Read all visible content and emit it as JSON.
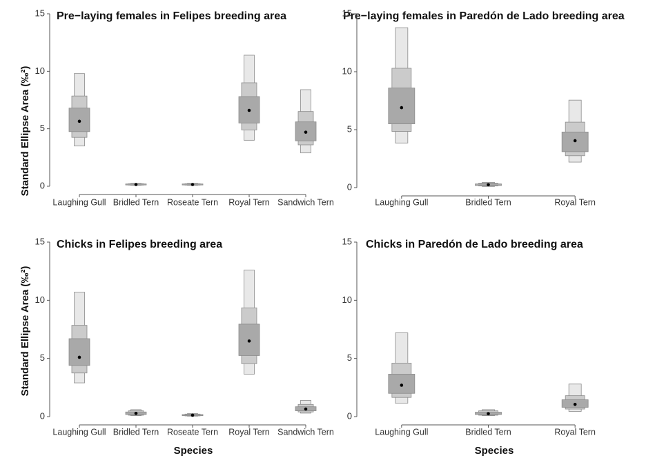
{
  "y_axis_title": "Standard Ellipse Area (‰²)",
  "x_axis_title": "Species",
  "colors": {
    "outer": "#e8e8e8",
    "middle": "#cbcbcb",
    "inner": "#a9a9a9",
    "stroke": "#8a8a8a",
    "mode": "#000000"
  },
  "chart_data": [
    {
      "type": "box",
      "title": "Pre−laying females in Felipes breeding area",
      "ylim": [
        0,
        15
      ],
      "yticks": [
        0,
        5,
        10,
        15
      ],
      "categories": [
        "Laughing Gull",
        "Bridled Tern",
        "Roseate Tern",
        "Royal Tern",
        "Sandwich Tern"
      ],
      "series": [
        {
          "category": "Laughing Gull",
          "mode": 5.65,
          "ci50": [
            4.75,
            6.8
          ],
          "ci75": [
            4.25,
            7.85
          ],
          "ci95": [
            3.5,
            9.8
          ]
        },
        {
          "category": "Bridled Tern",
          "mode": 0.15,
          "ci50": [
            0.12,
            0.2
          ],
          "ci75": [
            0.1,
            0.22
          ],
          "ci95": [
            0.08,
            0.25
          ]
        },
        {
          "category": "Roseate Tern",
          "mode": 0.15,
          "ci50": [
            0.12,
            0.2
          ],
          "ci75": [
            0.1,
            0.22
          ],
          "ci95": [
            0.08,
            0.25
          ]
        },
        {
          "category": "Royal Tern",
          "mode": 6.6,
          "ci50": [
            5.5,
            7.8
          ],
          "ci75": [
            4.9,
            9.0
          ],
          "ci95": [
            4.0,
            11.4
          ]
        },
        {
          "category": "Sandwich Tern",
          "mode": 4.7,
          "ci50": [
            3.95,
            5.6
          ],
          "ci75": [
            3.6,
            6.5
          ],
          "ci95": [
            2.9,
            8.4
          ]
        }
      ]
    },
    {
      "type": "box",
      "title": "Pre−laying females in Paredón de Lado breeding area",
      "ylim": [
        0,
        15
      ],
      "yticks": [
        0,
        5,
        10,
        15
      ],
      "categories": [
        "Laughing Gull",
        "Bridled Tern",
        "Royal Tern"
      ],
      "series": [
        {
          "category": "Laughing Gull",
          "mode": 6.9,
          "ci50": [
            5.5,
            8.6
          ],
          "ci75": [
            4.85,
            10.3
          ],
          "ci95": [
            3.85,
            13.8
          ]
        },
        {
          "category": "Bridled Tern",
          "mode": 0.25,
          "ci50": [
            0.18,
            0.32
          ],
          "ci75": [
            0.14,
            0.38
          ],
          "ci95": [
            0.1,
            0.45
          ]
        },
        {
          "category": "Royal Tern",
          "mode": 4.05,
          "ci50": [
            3.1,
            4.8
          ],
          "ci75": [
            2.75,
            5.65
          ],
          "ci95": [
            2.2,
            7.55
          ]
        }
      ]
    },
    {
      "type": "box",
      "title": "Chicks in Felipes breeding area",
      "ylim": [
        0,
        15
      ],
      "yticks": [
        0,
        5,
        10,
        15
      ],
      "categories": [
        "Laughing Gull",
        "Bridled Tern",
        "Roseate Tern",
        "Royal Tern",
        "Sandwich Tern"
      ],
      "series": [
        {
          "category": "Laughing Gull",
          "mode": 5.1,
          "ci50": [
            4.4,
            6.7
          ],
          "ci75": [
            3.75,
            7.85
          ],
          "ci95": [
            2.9,
            10.7
          ]
        },
        {
          "category": "Bridled Tern",
          "mode": 0.28,
          "ci50": [
            0.18,
            0.4
          ],
          "ci75": [
            0.12,
            0.5
          ],
          "ci95": [
            0.08,
            0.6
          ]
        },
        {
          "category": "Roseate Tern",
          "mode": 0.12,
          "ci50": [
            0.08,
            0.18
          ],
          "ci75": [
            0.06,
            0.22
          ],
          "ci95": [
            0.04,
            0.26
          ]
        },
        {
          "category": "Royal Tern",
          "mode": 6.5,
          "ci50": [
            5.25,
            7.95
          ],
          "ci75": [
            4.55,
            9.35
          ],
          "ci95": [
            3.65,
            12.6
          ]
        },
        {
          "category": "Sandwich Tern",
          "mode": 0.65,
          "ci50": [
            0.5,
            0.85
          ],
          "ci75": [
            0.4,
            1.05
          ],
          "ci95": [
            0.3,
            1.4
          ]
        }
      ]
    },
    {
      "type": "box",
      "title": "Chicks in Paredón de Lado breeding area",
      "ylim": [
        0,
        15
      ],
      "yticks": [
        0,
        5,
        10,
        15
      ],
      "categories": [
        "Laughing Gull",
        "Bridled Tern",
        "Royal Tern"
      ],
      "series": [
        {
          "category": "Laughing Gull",
          "mode": 2.7,
          "ci50": [
            2.0,
            3.65
          ],
          "ci75": [
            1.65,
            4.6
          ],
          "ci95": [
            1.15,
            7.2
          ]
        },
        {
          "category": "Bridled Tern",
          "mode": 0.25,
          "ci50": [
            0.18,
            0.38
          ],
          "ci75": [
            0.12,
            0.5
          ],
          "ci95": [
            0.08,
            0.6
          ]
        },
        {
          "category": "Royal Tern",
          "mode": 1.05,
          "ci50": [
            0.8,
            1.45
          ],
          "ci75": [
            0.65,
            1.8
          ],
          "ci95": [
            0.45,
            2.8
          ]
        }
      ]
    }
  ]
}
